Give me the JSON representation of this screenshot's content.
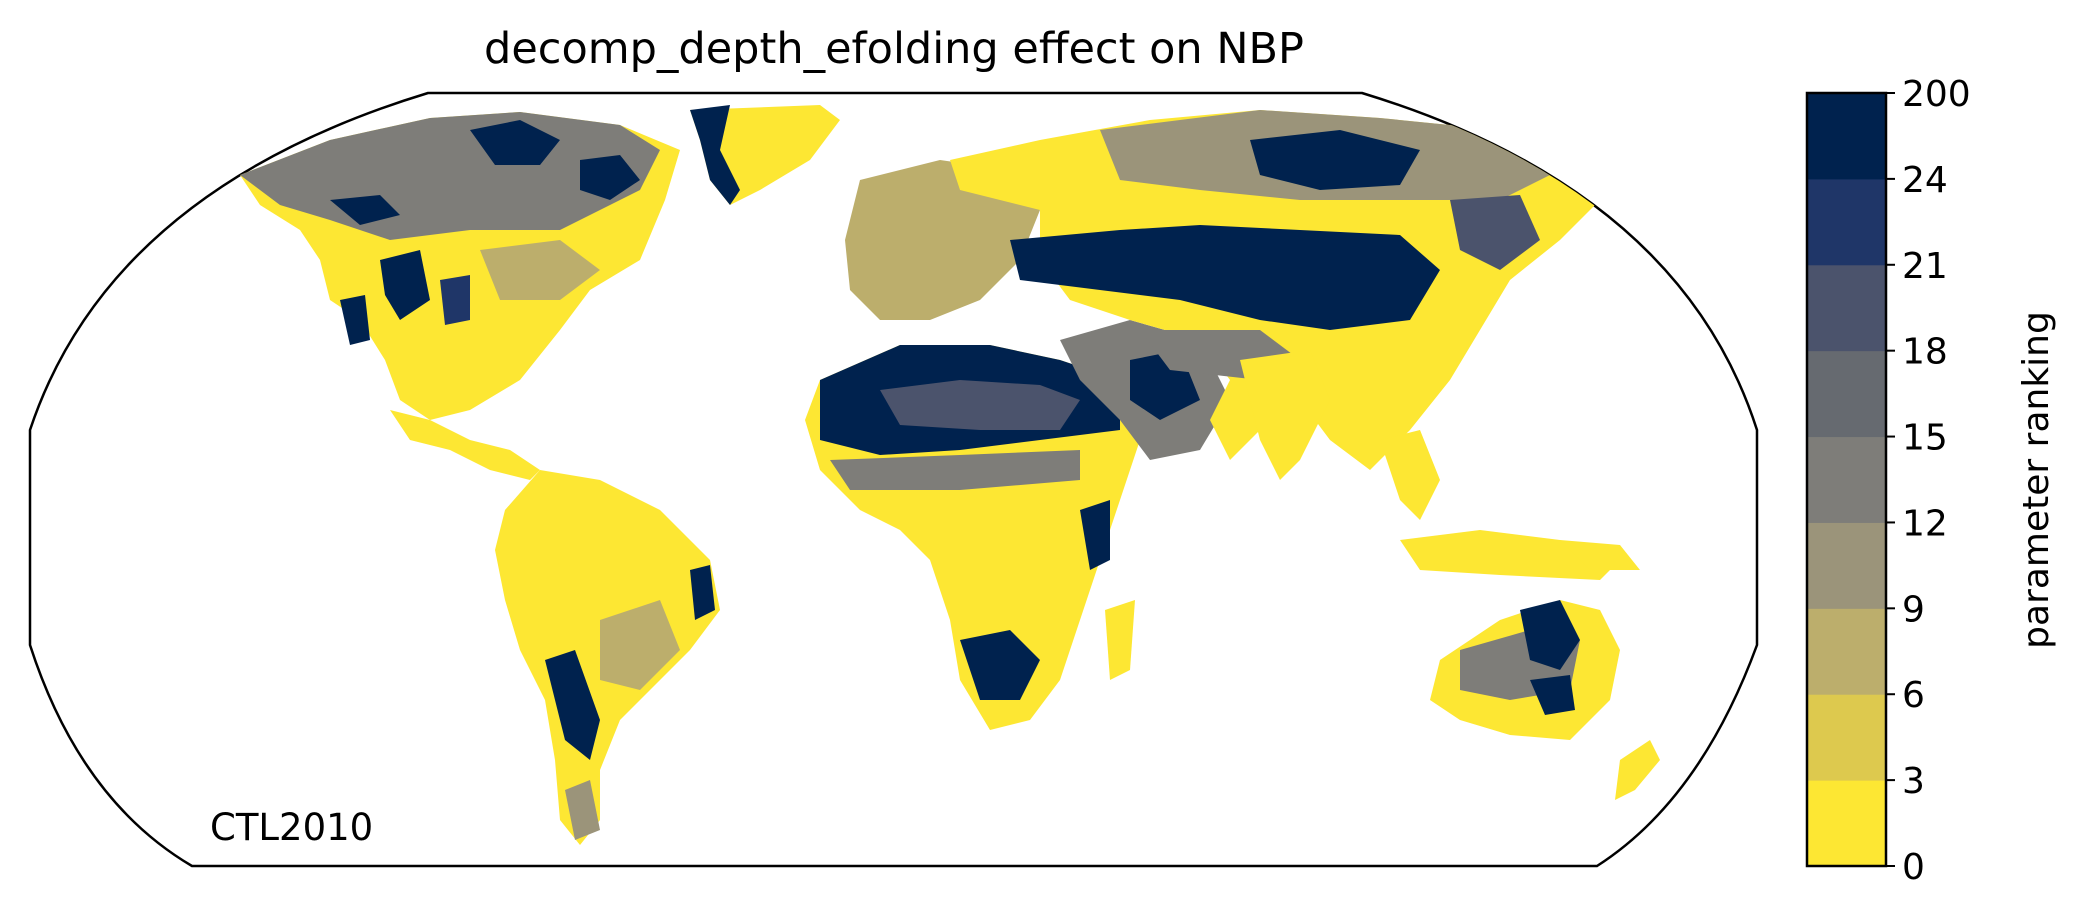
{
  "title": "decomp_depth_efolding effect on NBP",
  "annotation": "CTL2010",
  "colorbar": {
    "label": "parameter ranking",
    "ticks": [
      "0",
      "3",
      "6",
      "9",
      "12",
      "15",
      "18",
      "21",
      "24",
      "200"
    ],
    "colors": [
      "#fde733",
      "#ddc94e",
      "#bcae6c",
      "#9b947a",
      "#7e7d79",
      "#666a70",
      "#4b536c",
      "#1f3668",
      "#00224e"
    ]
  },
  "map": {
    "projection": "Robinson",
    "land_colors": {
      "low": "#fde733",
      "mid_low": "#ddc94e",
      "mid": "#bcae6c",
      "mid_gray": "#9b947a",
      "gray": "#7e7d79",
      "dark_gray": "#666a70",
      "slate": "#4b536c",
      "blue": "#1f3668",
      "navy": "#00224e"
    },
    "coastline_color": "#808080"
  }
}
